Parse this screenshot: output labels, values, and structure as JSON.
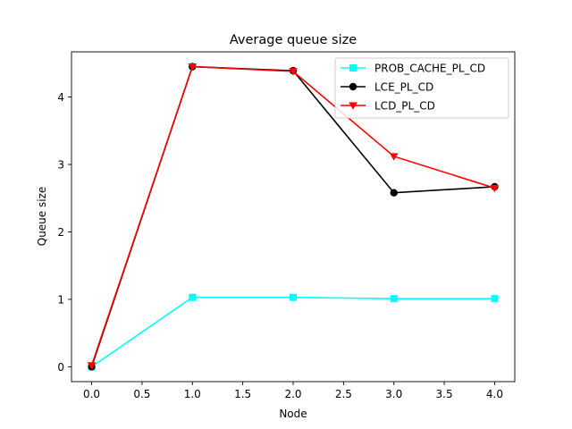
{
  "chart_data": {
    "type": "line",
    "title": "Average queue size",
    "xlabel": "Node",
    "ylabel": "Queue size",
    "x": [
      0,
      1,
      2,
      3,
      4
    ],
    "xlim": [
      -0.2,
      4.2
    ],
    "ylim": [
      -0.22,
      4.67
    ],
    "xticks": [
      0.0,
      0.5,
      1.0,
      1.5,
      2.0,
      2.5,
      3.0,
      3.5,
      4.0
    ],
    "xtick_labels": [
      "0.0",
      "0.5",
      "1.0",
      "1.5",
      "2.0",
      "2.5",
      "3.0",
      "3.5",
      "4.0"
    ],
    "yticks": [
      0,
      1,
      2,
      3,
      4
    ],
    "ytick_labels": [
      "0",
      "1",
      "2",
      "3",
      "4"
    ],
    "grid": false,
    "legend_position": "top-right",
    "series": [
      {
        "name": "PROB_CACHE_PL_CD",
        "color": "#00ffff",
        "marker": "square",
        "values": [
          0.0,
          1.03,
          1.03,
          1.01,
          1.01
        ]
      },
      {
        "name": "LCE_PL_CD",
        "color": "#000000",
        "marker": "circle",
        "values": [
          0.0,
          4.45,
          4.39,
          2.58,
          2.67
        ]
      },
      {
        "name": "LCD_PL_CD",
        "color": "#ff0000",
        "marker": "triangle-down",
        "values": [
          0.02,
          4.45,
          4.38,
          3.12,
          2.65
        ]
      }
    ]
  }
}
